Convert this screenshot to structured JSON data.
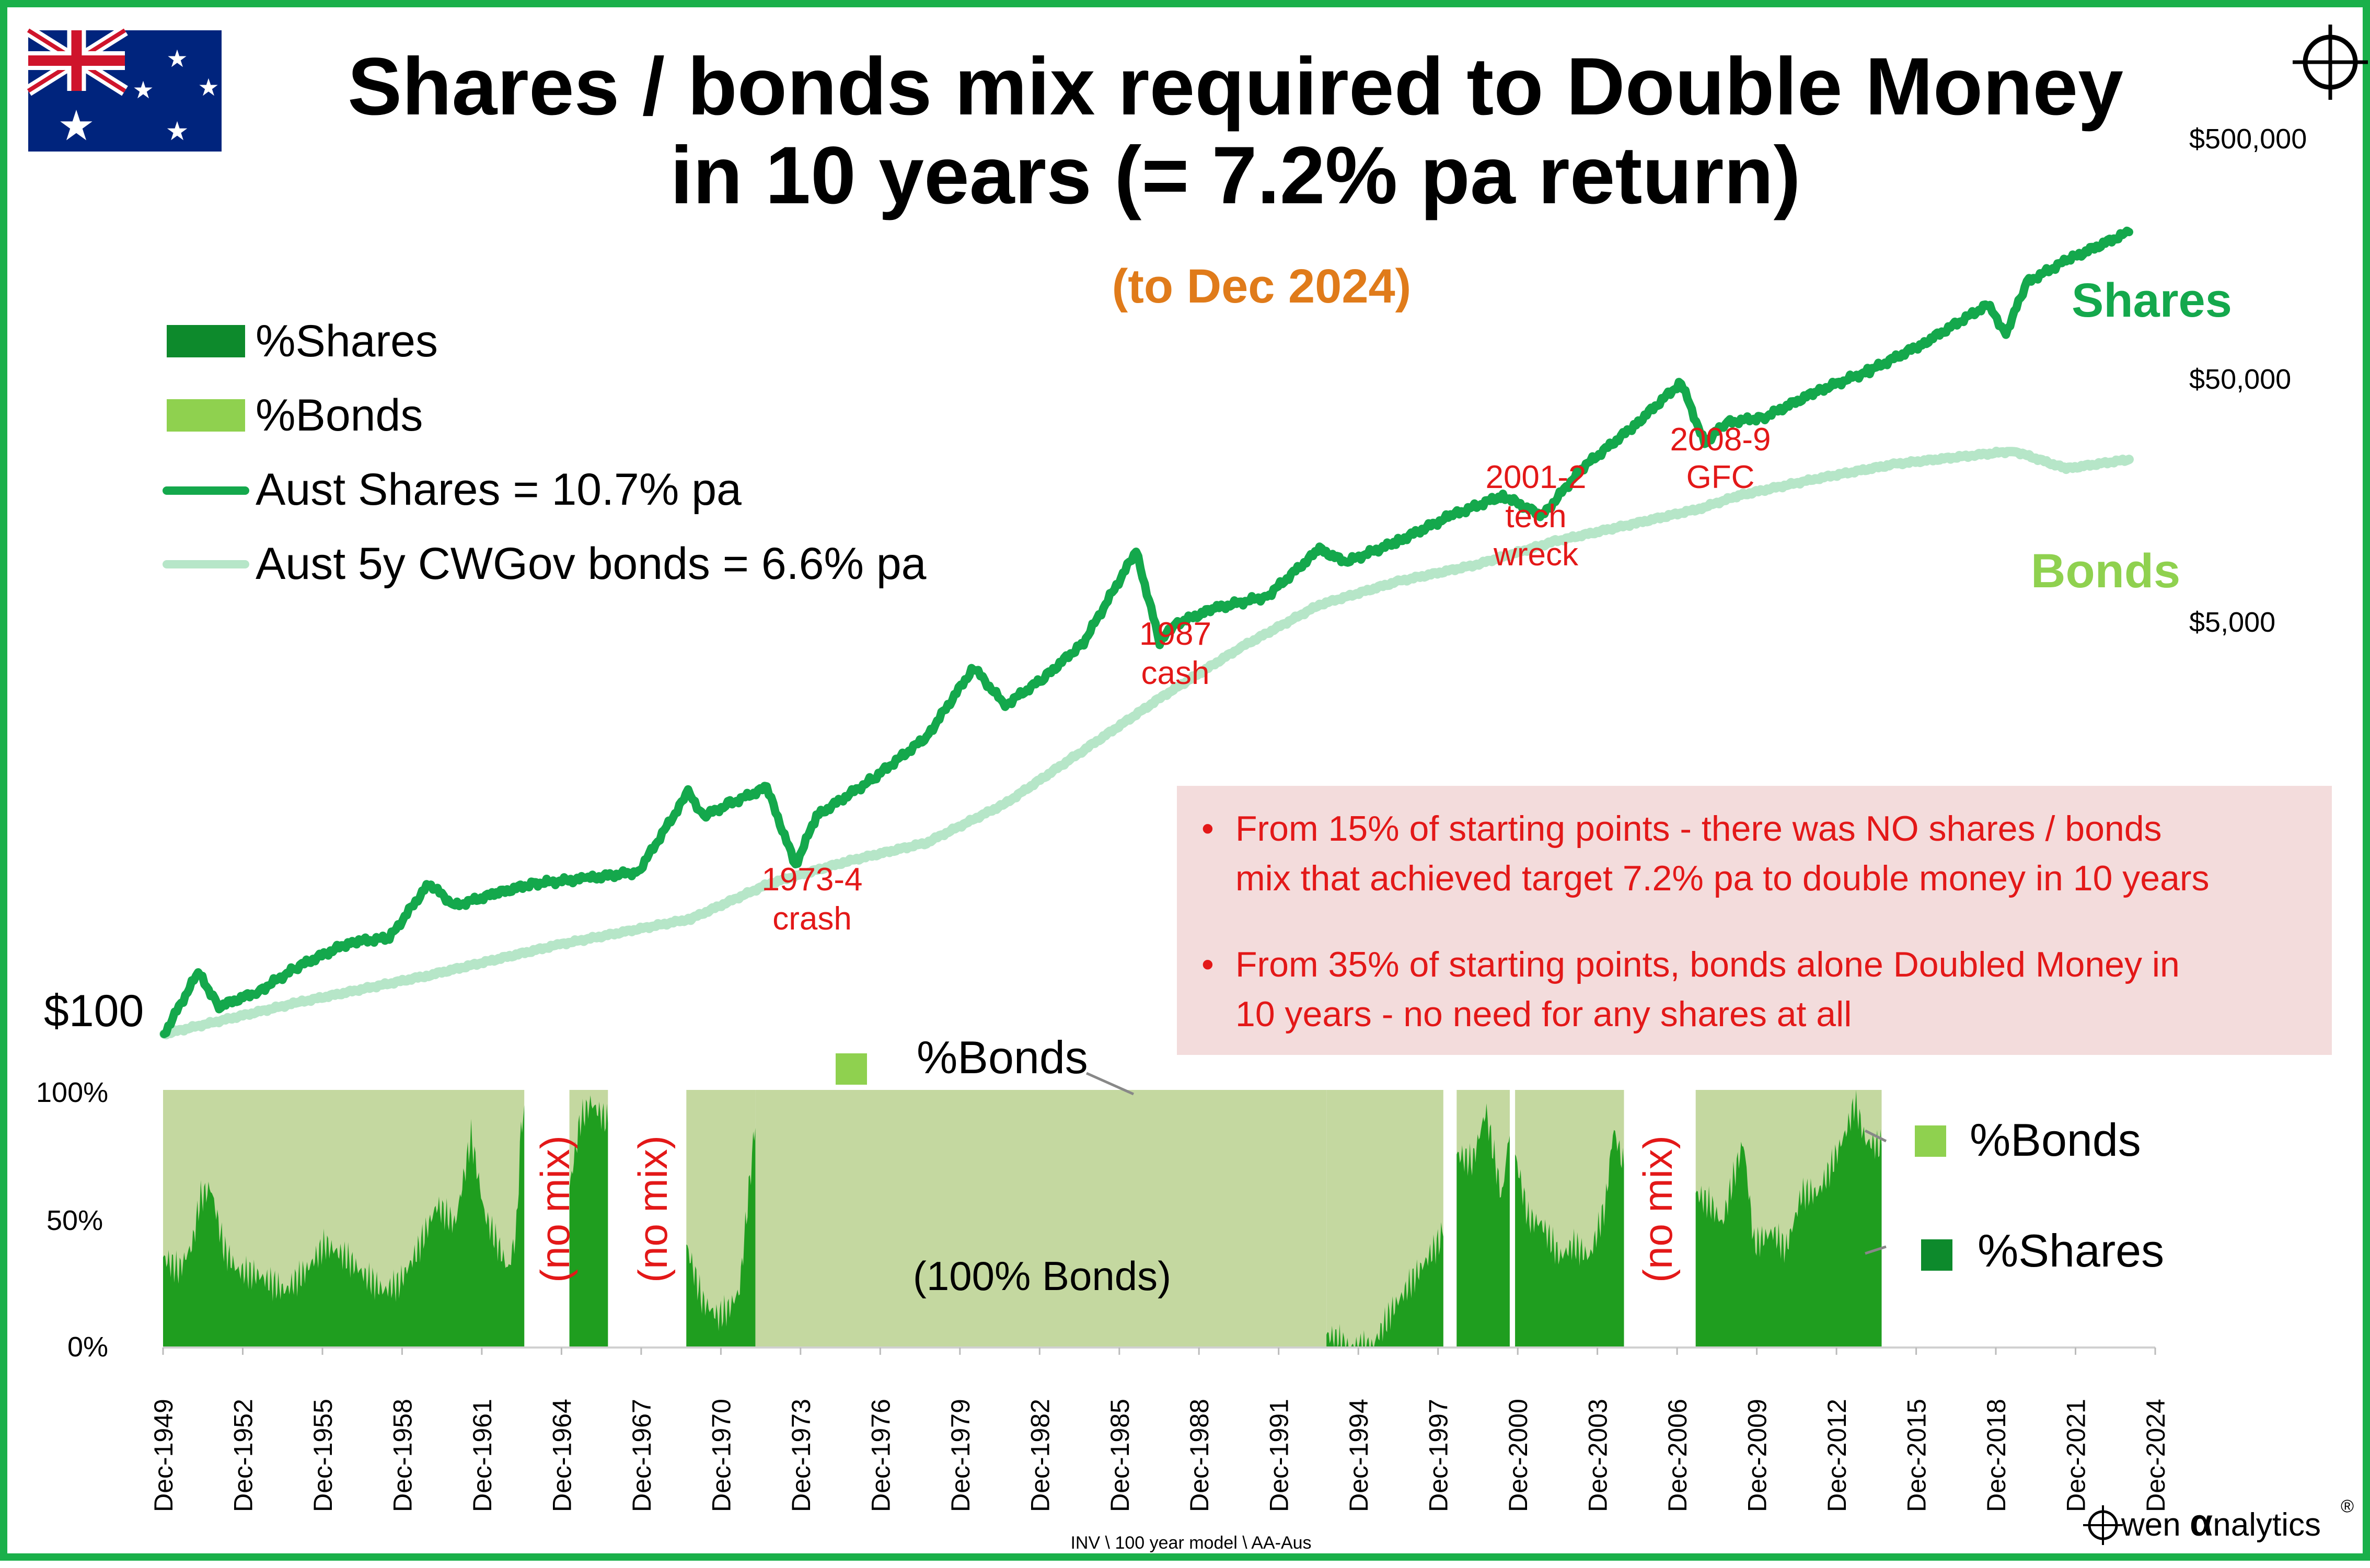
{
  "title_line1": "Shares / bonds mix required to Double Money",
  "title_line2": "in 10 years (= 7.2% pa return)",
  "subtitle": "(to Dec 2024)",
  "flag_icon": "australia-flag-icon",
  "crosshair_icon": "crosshair-icon",
  "colors": {
    "border": "#1ab04a",
    "shares_line": "#14a84c",
    "bonds_line": "#b6e6c8",
    "shares_fill": "#1f9e1f",
    "bonds_fill": "#c4d8a0",
    "annotation": "#e31818",
    "note_box": "#f3dcdc"
  },
  "legend": [
    {
      "label": "%Shares",
      "kind": "swatch",
      "color": "#0d8a2c"
    },
    {
      "label": "%Bonds",
      "kind": "swatch",
      "color": "#8fd14f"
    },
    {
      "label": "Aust Shares = 10.7% pa",
      "kind": "line",
      "color": "#14a84c"
    },
    {
      "label": "Aust 5y CWGov bonds = 6.6% pa",
      "kind": "line",
      "color": "#b6e6c8"
    }
  ],
  "right_axis_labels": [
    "$500,000",
    "$50,000",
    "$5,000"
  ],
  "start_label": "$100",
  "series_labels": {
    "shares": "Shares",
    "bonds": "Bonds"
  },
  "annotations": [
    {
      "lines": [
        "1973-4",
        "crash"
      ]
    },
    {
      "lines": [
        "1987",
        "cash"
      ]
    },
    {
      "lines": [
        "2001-2",
        "tech",
        "wreck"
      ]
    },
    {
      "lines": [
        "2008-9",
        "GFC"
      ]
    }
  ],
  "notes": [
    {
      "lines": [
        "From 15% of starting points - there was NO shares / bonds",
        "mix that achieved target 7.2% pa to double money in 10 years"
      ]
    },
    {
      "lines": [
        "From 35% of starting points, bonds alone Doubled Money in",
        "10 years - no need for any shares at all"
      ]
    }
  ],
  "bottom_chart": {
    "y_ticks": [
      "100%",
      "50%",
      "0%"
    ],
    "x_ticks": [
      "Dec-1949",
      "Dec-1952",
      "Dec-1955",
      "Dec-1958",
      "Dec-1961",
      "Dec-1964",
      "Dec-1967",
      "Dec-1970",
      "Dec-1973",
      "Dec-1976",
      "Dec-1979",
      "Dec-1982",
      "Dec-1985",
      "Dec-1988",
      "Dec-1991",
      "Dec-1994",
      "Dec-1997",
      "Dec-2000",
      "Dec-2003",
      "Dec-2006",
      "Dec-2009",
      "Dec-2012",
      "Dec-2015",
      "Dec-2018",
      "Dec-2021",
      "Dec-2024"
    ],
    "no_mix_label": "(no mix)",
    "bonds_only_label": "(100% Bonds)",
    "bonds_callout": "%Bonds",
    "legend": [
      {
        "label": "%Bonds",
        "color": "#8fd14f"
      },
      {
        "label": "%Shares",
        "color": "#0d8a2c"
      }
    ]
  },
  "chart_data": [
    {
      "type": "line",
      "title": "Shares / bonds mix required to Double Money in 10 years (= 7.2% pa return)",
      "y_scale": "log",
      "ylim": [
        100,
        1000000
      ],
      "xlim": [
        1949.9,
        2024.9
      ],
      "series": [
        {
          "name": "Aust Shares = 10.7% pa",
          "x": [
            1949.9,
            1951.2,
            1952.0,
            1953.5,
            1955.0,
            1957.0,
            1958.5,
            1960.0,
            1961.0,
            1962.5,
            1964.0,
            1966.0,
            1968.0,
            1969.9,
            1970.5,
            1971.5,
            1972.9,
            1974.0,
            1974.8,
            1977.0,
            1979.0,
            1980.8,
            1982.0,
            1983.5,
            1985.0,
            1987.0,
            1987.9,
            1988.5,
            1990.0,
            1992.0,
            1994.0,
            1995.0,
            1997.0,
            1999.0,
            2001.0,
            2002.5,
            2004.0,
            2006.0,
            2007.8,
            2008.7,
            2009.5,
            2011.0,
            2013.0,
            2015.0,
            2017.0,
            2019.5,
            2020.2,
            2021.0,
            2022.5,
            2024.9
          ],
          "y": [
            100,
            180,
            130,
            150,
            190,
            240,
            250,
            420,
            340,
            380,
            420,
            440,
            470,
            1000,
            800,
            900,
            1050,
            500,
            800,
            1150,
            1700,
            3300,
            2300,
            3000,
            4200,
            10000,
            4200,
            5000,
            5800,
            6500,
            10200,
            9000,
            11000,
            14000,
            17000,
            14000,
            22000,
            33000,
            50000,
            28000,
            34000,
            36000,
            46000,
            56000,
            72000,
            105000,
            80000,
            130000,
            160000,
            210000
          ]
        },
        {
          "name": "Aust 5y CWGov bonds = 6.6% pa",
          "x": [
            1949.9,
            1955.0,
            1960.0,
            1965.0,
            1970.0,
            1973.0,
            1976.0,
            1979.0,
            1982.0,
            1985.0,
            1988.0,
            1991.0,
            1994.0,
            1997.0,
            2000.0,
            2003.0,
            2006.0,
            2008.5,
            2010.0,
            2013.0,
            2016.0,
            2019.0,
            2020.5,
            2022.5,
            2024.9
          ],
          "y": [
            100,
            135,
            175,
            235,
            300,
            420,
            520,
            620,
            900,
            1500,
            2500,
            4000,
            6000,
            7500,
            8800,
            11000,
            13000,
            15000,
            17000,
            20000,
            23000,
            25000,
            26000,
            22000,
            24000
          ]
        }
      ],
      "annotations": [
        "1973-4 crash",
        "1987 cash",
        "2001-2 tech wreck",
        "2008-9 GFC"
      ],
      "end_values_label": {
        "shares": "Shares",
        "bonds": "Bonds"
      }
    },
    {
      "type": "area",
      "title": "",
      "ylabel": "",
      "ylim": [
        0,
        100
      ],
      "y_unit": "%",
      "x_range": [
        "Dec-1949",
        "Dec-2024"
      ],
      "shares_pct_points": [
        [
          1949.9,
          35
        ],
        [
          1950.5,
          30
        ],
        [
          1951.0,
          40
        ],
        [
          1951.3,
          58
        ],
        [
          1951.7,
          62
        ],
        [
          1952.2,
          38
        ],
        [
          1952.7,
          30
        ],
        [
          1953.5,
          28
        ],
        [
          1954.5,
          22
        ],
        [
          1955.3,
          30
        ],
        [
          1956.0,
          40
        ],
        [
          1956.8,
          35
        ],
        [
          1957.5,
          28
        ],
        [
          1958.2,
          22
        ],
        [
          1958.8,
          25
        ],
        [
          1959.5,
          38
        ],
        [
          1960.2,
          55
        ],
        [
          1960.9,
          48
        ],
        [
          1961.5,
          82
        ],
        [
          1962.0,
          52
        ],
        [
          1962.5,
          40
        ],
        [
          1962.9,
          30
        ],
        [
          1963.2,
          45
        ],
        [
          1963.4,
          90
        ],
        [
          1965.2,
          62
        ],
        [
          1965.6,
          88
        ],
        [
          1966.0,
          95
        ],
        [
          1966.6,
          88
        ],
        [
          1969.6,
          40
        ],
        [
          1970.2,
          18
        ],
        [
          1970.8,
          12
        ],
        [
          1971.2,
          15
        ],
        [
          1971.6,
          22
        ],
        [
          1971.9,
          55
        ],
        [
          1972.2,
          88
        ],
        [
          1993.7,
          5
        ],
        [
          1994.6,
          0
        ],
        [
          1995.4,
          0
        ],
        [
          1996.2,
          15
        ],
        [
          1997.2,
          30
        ],
        [
          1998.0,
          42
        ],
        [
          1998.6,
          75
        ],
        [
          1999.2,
          72
        ],
        [
          1999.7,
          92
        ],
        [
          2000.3,
          58
        ],
        [
          2000.6,
          85
        ],
        [
          2001.3,
          50
        ],
        [
          2001.8,
          48
        ],
        [
          2002.5,
          35
        ],
        [
          2003.0,
          40
        ],
        [
          2003.6,
          35
        ],
        [
          2004.2,
          55
        ],
        [
          2004.5,
          85
        ],
        [
          2004.9,
          70
        ],
        [
          2007.6,
          60
        ],
        [
          2008.2,
          55
        ],
        [
          2008.6,
          48
        ],
        [
          2009.0,
          65
        ],
        [
          2009.4,
          80
        ],
        [
          2009.8,
          40
        ],
        [
          2010.5,
          45
        ],
        [
          2011.0,
          38
        ],
        [
          2011.6,
          60
        ],
        [
          2012.2,
          60
        ],
        [
          2012.7,
          70
        ],
        [
          2013.3,
          85
        ],
        [
          2013.6,
          95
        ],
        [
          2014.0,
          80
        ],
        [
          2014.6,
          78
        ]
      ],
      "segments": [
        {
          "from": "Dec-1949",
          "to": "Dec-1963",
          "status": "mix"
        },
        {
          "from": "Dec-1963",
          "to": "Dec-1964",
          "status": "no mix"
        },
        {
          "from": "Dec-1965",
          "to": "Dec-1966",
          "status": "mix"
        },
        {
          "from": "Dec-1966",
          "to": "Dec-1968",
          "status": "no mix"
        },
        {
          "from": "Dec-1969",
          "to": "Dec-1972",
          "status": "mix"
        },
        {
          "from": "Dec-1972",
          "to": "Dec-1993",
          "status": "100% bonds"
        },
        {
          "from": "Dec-1993",
          "to": "Dec-2004",
          "status": "mix"
        },
        {
          "from": "Dec-2004",
          "to": "Dec-2007",
          "status": "no mix"
        },
        {
          "from": "Dec-2007",
          "to": "Dec-2014",
          "status": "mix"
        },
        {
          "from": "Dec-2014",
          "to": "Dec-2024",
          "status": "no data"
        }
      ]
    }
  ],
  "source": "INV \\ 100 year model \\ AA-Aus",
  "brand": {
    "prefix": "wen ",
    "alpha": "α",
    "suffix": "nalytics",
    "reg": "®"
  }
}
